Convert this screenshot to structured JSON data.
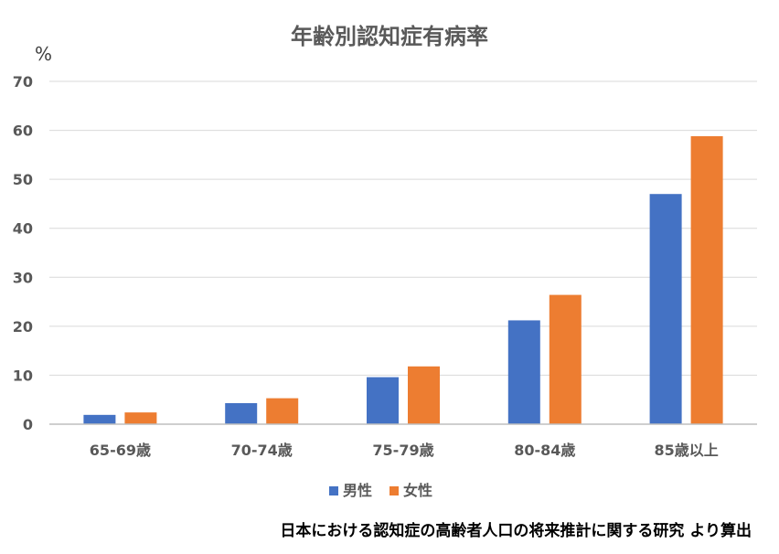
{
  "chart_data": {
    "type": "bar",
    "title": "年齢別認知症有病率",
    "ylabel": "%",
    "xlabel": "",
    "ylim": [
      0,
      70
    ],
    "yticks": [
      0,
      10,
      20,
      30,
      40,
      50,
      60,
      70
    ],
    "grid": true,
    "legend_position": "bottom",
    "categories": [
      "65-69歳",
      "70-74歳",
      "75-79歳",
      "80-84歳",
      "85歳以上"
    ],
    "series": [
      {
        "name": "男性",
        "color": "#4472c4",
        "values": [
          1.9,
          4.3,
          9.6,
          21.2,
          47.0
        ]
      },
      {
        "name": "女性",
        "color": "#ed7d31",
        "values": [
          2.4,
          5.3,
          11.8,
          26.4,
          58.8
        ]
      }
    ],
    "source_note": "日本における認知症の高齢者人口の将来推計に関する研究 より算出"
  }
}
